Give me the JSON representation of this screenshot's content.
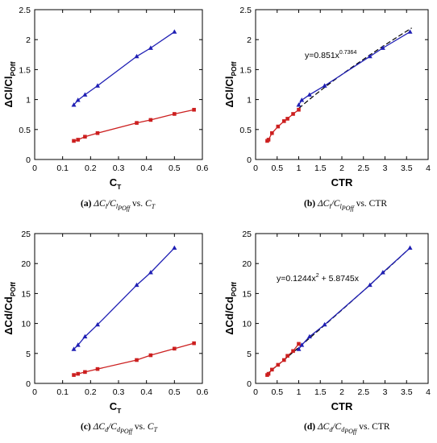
{
  "panels": [
    {
      "id": "a",
      "ylabel": "ΔCl/Cl",
      "ylabel_sub": "POff",
      "xlabel": "C",
      "xlabel_sub": "T",
      "xlim": [
        0,
        0.6
      ],
      "xticks": [
        0,
        0.1,
        0.2,
        0.3,
        0.4,
        0.5,
        0.6
      ],
      "xtick_labels": [
        "0",
        "0.1",
        "0.2",
        "0.3",
        "0.4",
        "0.5",
        "0.6"
      ],
      "ylim": [
        0,
        2.5
      ],
      "yticks": [
        0,
        0.5,
        1,
        1.5,
        2,
        2.5
      ],
      "ytick_labels": [
        "0",
        "0.5",
        "1",
        "1.5",
        "2",
        "2.5"
      ],
      "caption_label": "(a)",
      "caption_tail": "vs.",
      "caption_end": "C",
      "caption_end_sub": "T",
      "series": [
        {
          "marker": "triangle",
          "color": "#1f1fb4",
          "x": [
            0.14,
            0.155,
            0.18,
            0.225,
            0.365,
            0.415,
            0.5
          ],
          "y": [
            0.91,
            0.99,
            1.08,
            1.23,
            1.72,
            1.86,
            2.13
          ]
        },
        {
          "marker": "square",
          "color": "#cc1f1f",
          "x": [
            0.14,
            0.155,
            0.18,
            0.225,
            0.365,
            0.415,
            0.5,
            0.57
          ],
          "y": [
            0.31,
            0.33,
            0.38,
            0.44,
            0.61,
            0.66,
            0.76,
            0.83
          ]
        }
      ]
    },
    {
      "id": "b",
      "ylabel": "ΔCl/Cl",
      "ylabel_sub": "POff",
      "xlabel": "CTR",
      "xlabel_sub": "",
      "xlim": [
        0,
        4
      ],
      "xticks": [
        0,
        0.5,
        1,
        1.5,
        2,
        2.5,
        3,
        3.5,
        4
      ],
      "xtick_labels": [
        "0",
        "0.5",
        "1",
        "1.5",
        "2",
        "2.5",
        "3",
        "3.5",
        "4"
      ],
      "ylim": [
        0,
        2.5
      ],
      "yticks": [
        0,
        0.5,
        1,
        1.5,
        2,
        2.5
      ],
      "ytick_labels": [
        "0",
        "0.5",
        "1",
        "1.5",
        "2",
        "2.5"
      ],
      "caption_label": "(b)",
      "caption_tail": "vs. CTR",
      "caption_end": "",
      "caption_end_sub": "",
      "fit_text": "y=0.851x",
      "fit_exp": "0.7364",
      "fit": {
        "type": "power",
        "a": 0.851,
        "b": 0.7364,
        "xrange": [
          1.0,
          3.62
        ]
      },
      "series": [
        {
          "marker": "triangle",
          "color": "#1f1fb4",
          "x": [
            1.0,
            1.07,
            1.25,
            1.6,
            2.65,
            2.95,
            3.58
          ],
          "y": [
            0.91,
            0.99,
            1.08,
            1.23,
            1.72,
            1.86,
            2.13
          ]
        },
        {
          "marker": "square",
          "color": "#cc1f1f",
          "x": [
            0.27,
            0.3,
            0.38,
            0.52,
            0.66,
            0.74,
            0.87,
            1.0
          ],
          "y": [
            0.31,
            0.33,
            0.44,
            0.55,
            0.64,
            0.68,
            0.76,
            0.83
          ]
        }
      ]
    },
    {
      "id": "c",
      "ylabel": "ΔCd/Cd",
      "ylabel_sub": "POff",
      "xlabel": "C",
      "xlabel_sub": "T",
      "xlim": [
        0,
        0.6
      ],
      "xticks": [
        0,
        0.1,
        0.2,
        0.3,
        0.4,
        0.5,
        0.6
      ],
      "xtick_labels": [
        "0",
        "0.1",
        "0.2",
        "0.3",
        "0.4",
        "0.5",
        "0.6"
      ],
      "ylim": [
        0,
        25
      ],
      "yticks": [
        0,
        5,
        10,
        15,
        20,
        25
      ],
      "ytick_labels": [
        "0",
        "5",
        "10",
        "15",
        "20",
        "25"
      ],
      "caption_label": "(c)",
      "caption_tail": "vs.",
      "caption_end": "C",
      "caption_end_sub": "T",
      "series": [
        {
          "marker": "triangle",
          "color": "#1f1fb4",
          "x": [
            0.14,
            0.155,
            0.18,
            0.225,
            0.365,
            0.415,
            0.5
          ],
          "y": [
            5.7,
            6.4,
            7.8,
            9.8,
            16.4,
            18.5,
            22.6
          ]
        },
        {
          "marker": "square",
          "color": "#cc1f1f",
          "x": [
            0.14,
            0.155,
            0.18,
            0.225,
            0.365,
            0.415,
            0.5,
            0.57
          ],
          "y": [
            1.4,
            1.6,
            1.9,
            2.4,
            3.9,
            4.7,
            5.8,
            6.7
          ]
        }
      ]
    },
    {
      "id": "d",
      "ylabel": "ΔCd/Cd",
      "ylabel_sub": "POff",
      "xlabel": "CTR",
      "xlabel_sub": "",
      "xlim": [
        0,
        4
      ],
      "xticks": [
        0,
        0.5,
        1,
        1.5,
        2,
        2.5,
        3,
        3.5,
        4
      ],
      "xtick_labels": [
        "0",
        "0.5",
        "1",
        "1.5",
        "2",
        "2.5",
        "3",
        "3.5",
        "4"
      ],
      "ylim": [
        0,
        25
      ],
      "yticks": [
        0,
        5,
        10,
        15,
        20,
        25
      ],
      "ytick_labels": [
        "0",
        "5",
        "10",
        "15",
        "20",
        "25"
      ],
      "caption_label": "(d)",
      "caption_tail": "vs. CTR",
      "caption_end": "",
      "caption_end_sub": "",
      "fit_text": "y=0.1244x",
      "fit_exp": "2",
      "fit_text2": " + 5.8745x",
      "fit": {
        "type": "poly2",
        "a": 0.1244,
        "b": 5.8745,
        "xrange": [
          0.25,
          3.6
        ]
      },
      "series": [
        {
          "marker": "triangle",
          "color": "#1f1fb4",
          "x": [
            1.0,
            1.07,
            1.25,
            1.6,
            2.65,
            2.95,
            3.58
          ],
          "y": [
            5.7,
            6.4,
            7.8,
            9.8,
            16.4,
            18.5,
            22.6
          ]
        },
        {
          "marker": "square",
          "color": "#cc1f1f",
          "x": [
            0.27,
            0.3,
            0.38,
            0.52,
            0.66,
            0.74,
            0.87,
            1.0
          ],
          "y": [
            1.4,
            1.6,
            2.3,
            3.1,
            3.9,
            4.6,
            5.4,
            6.6
          ]
        }
      ]
    }
  ],
  "chart_data": [
    {
      "type": "line",
      "panel": "a",
      "xlabel": "C_T",
      "ylabel": "ΔCl/Cl_POff",
      "xlim": [
        0,
        0.6
      ],
      "ylim": [
        0,
        2.5
      ],
      "series": [
        {
          "x": [
            0.14,
            0.155,
            0.18,
            0.225,
            0.365,
            0.415,
            0.5
          ],
          "values": [
            0.91,
            0.99,
            1.08,
            1.23,
            1.72,
            1.86,
            2.13
          ]
        },
        {
          "x": [
            0.14,
            0.155,
            0.18,
            0.225,
            0.365,
            0.415,
            0.5,
            0.57
          ],
          "values": [
            0.31,
            0.33,
            0.38,
            0.44,
            0.61,
            0.66,
            0.76,
            0.83
          ]
        }
      ]
    },
    {
      "type": "line",
      "panel": "b",
      "xlabel": "CTR",
      "ylabel": "ΔCl/Cl_POff",
      "xlim": [
        0,
        4
      ],
      "ylim": [
        0,
        2.5
      ],
      "annotation": "y=0.851x^0.7364",
      "series": [
        {
          "x": [
            1.0,
            1.07,
            1.25,
            1.6,
            2.65,
            2.95,
            3.58
          ],
          "values": [
            0.91,
            0.99,
            1.08,
            1.23,
            1.72,
            1.86,
            2.13
          ]
        },
        {
          "x": [
            0.27,
            0.3,
            0.38,
            0.52,
            0.66,
            0.74,
            0.87,
            1.0
          ],
          "values": [
            0.31,
            0.33,
            0.44,
            0.55,
            0.64,
            0.68,
            0.76,
            0.83
          ]
        }
      ]
    },
    {
      "type": "line",
      "panel": "c",
      "xlabel": "C_T",
      "ylabel": "ΔCd/Cd_POff",
      "xlim": [
        0,
        0.6
      ],
      "ylim": [
        0,
        25
      ],
      "series": [
        {
          "x": [
            0.14,
            0.155,
            0.18,
            0.225,
            0.365,
            0.415,
            0.5
          ],
          "values": [
            5.7,
            6.4,
            7.8,
            9.8,
            16.4,
            18.5,
            22.6
          ]
        },
        {
          "x": [
            0.14,
            0.155,
            0.18,
            0.225,
            0.365,
            0.415,
            0.5,
            0.57
          ],
          "values": [
            1.4,
            1.6,
            1.9,
            2.4,
            3.9,
            4.7,
            5.8,
            6.7
          ]
        }
      ]
    },
    {
      "type": "line",
      "panel": "d",
      "xlabel": "CTR",
      "ylabel": "ΔCd/Cd_POff",
      "xlim": [
        0,
        4
      ],
      "ylim": [
        0,
        25
      ],
      "annotation": "y=0.1244x^2 + 5.8745x",
      "series": [
        {
          "x": [
            1.0,
            1.07,
            1.25,
            1.6,
            2.65,
            2.95,
            3.58
          ],
          "values": [
            5.7,
            6.4,
            7.8,
            9.8,
            16.4,
            18.5,
            22.6
          ]
        },
        {
          "x": [
            0.27,
            0.3,
            0.38,
            0.52,
            0.66,
            0.74,
            0.87,
            1.0
          ],
          "values": [
            1.4,
            1.6,
            2.3,
            3.1,
            3.9,
            4.6,
            5.4,
            6.6
          ]
        }
      ]
    }
  ]
}
